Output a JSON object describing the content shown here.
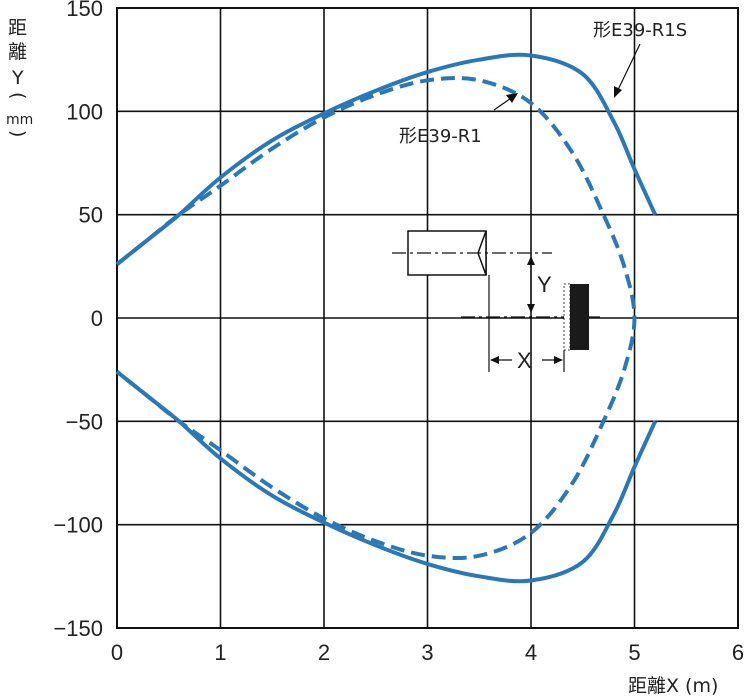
{
  "chart_data": {
    "type": "line",
    "ylabel_lines": [
      "距",
      "離",
      "Y",
      "(",
      "mm",
      ")"
    ],
    "xlabel": "距離X (m)",
    "xlim": [
      0,
      6
    ],
    "ylim": [
      -150,
      150
    ],
    "x_ticks": [
      "0",
      "1",
      "2",
      "3",
      "4",
      "5",
      "6"
    ],
    "y_ticks": [
      "150",
      "100",
      "50",
      "0",
      "−50",
      "−100",
      "−150"
    ],
    "y_tick_values": [
      150,
      100,
      50,
      0,
      -50,
      -100,
      -150
    ],
    "grid": true,
    "series": [
      {
        "name": "形E39-R1S",
        "style": "solid",
        "color": "#2a78b8",
        "upper": [
          [
            0,
            26
          ],
          [
            0.3,
            38
          ],
          [
            0.6,
            50
          ],
          [
            1.0,
            68
          ],
          [
            1.5,
            86
          ],
          [
            2.0,
            99
          ],
          [
            2.5,
            110
          ],
          [
            3.0,
            119
          ],
          [
            3.5,
            125
          ],
          [
            4.0,
            127
          ],
          [
            4.5,
            118
          ],
          [
            4.8,
            95
          ],
          [
            5.0,
            72
          ],
          [
            5.2,
            50
          ]
        ],
        "lower": [
          [
            0,
            -26
          ],
          [
            0.3,
            -38
          ],
          [
            0.6,
            -50
          ],
          [
            1.0,
            -68
          ],
          [
            1.5,
            -86
          ],
          [
            2.0,
            -99
          ],
          [
            2.5,
            -110
          ],
          [
            3.0,
            -119
          ],
          [
            3.5,
            -125
          ],
          [
            4.0,
            -127
          ],
          [
            4.5,
            -118
          ],
          [
            4.8,
            -95
          ],
          [
            5.0,
            -72
          ],
          [
            5.2,
            -50
          ]
        ]
      },
      {
        "name": "形E39-R1",
        "style": "dashed",
        "color": "#2a78b8",
        "upper": [
          [
            0,
            26
          ],
          [
            0.3,
            38
          ],
          [
            0.6,
            50
          ],
          [
            1.0,
            64
          ],
          [
            1.5,
            82
          ],
          [
            2.0,
            97
          ],
          [
            2.5,
            108
          ],
          [
            3.0,
            115
          ],
          [
            3.5,
            115
          ],
          [
            4.0,
            104
          ],
          [
            4.4,
            80
          ],
          [
            4.7,
            50
          ],
          [
            4.9,
            25
          ],
          [
            5.0,
            0
          ]
        ],
        "lower": [
          [
            0,
            -26
          ],
          [
            0.3,
            -38
          ],
          [
            0.6,
            -50
          ],
          [
            1.0,
            -64
          ],
          [
            1.5,
            -82
          ],
          [
            2.0,
            -97
          ],
          [
            2.5,
            -108
          ],
          [
            3.0,
            -115
          ],
          [
            3.5,
            -115
          ],
          [
            4.0,
            -104
          ],
          [
            4.4,
            -80
          ],
          [
            4.7,
            -50
          ],
          [
            4.9,
            -25
          ],
          [
            5.0,
            0
          ]
        ]
      }
    ],
    "annotations": [
      "形E39-R1S",
      "形E39-R1",
      "X",
      "Y"
    ]
  }
}
